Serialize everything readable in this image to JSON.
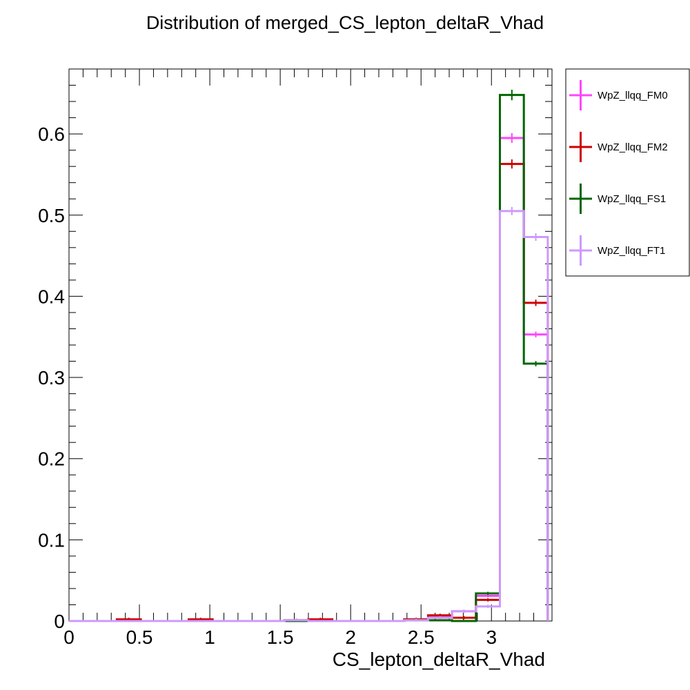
{
  "chart_data": {
    "type": "histogram",
    "title": "Distribution of merged_CS_lepton_deltaR_Vhad",
    "xlabel": "CS_lepton_deltaR_Vhad",
    "ylabel": "",
    "xlim": [
      0,
      3.43
    ],
    "ylim": [
      0,
      0.68
    ],
    "grid": false,
    "legend_position": "right, outside plot",
    "x_ticks": [
      "0",
      "0.5",
      "1",
      "1.5",
      "2",
      "2.5",
      "3"
    ],
    "y_ticks": [
      "0",
      "0.1",
      "0.2",
      "0.3",
      "0.4",
      "0.5",
      "0.6"
    ],
    "bin_edges": [
      0,
      0.17,
      0.34,
      0.51,
      0.68,
      0.85,
      1.02,
      1.19,
      1.36,
      1.53,
      1.7,
      1.87,
      2.04,
      2.21,
      2.38,
      2.55,
      2.72,
      2.89,
      3.06,
      3.23
    ],
    "series": [
      {
        "name": "WpZ_llqq_FM0",
        "color": "#ff44ff",
        "values": [
          0,
          0,
          0.001,
          0,
          0,
          0.001,
          0,
          0,
          0,
          0.001,
          0.001,
          0,
          0,
          0,
          0.001,
          0.005,
          0.012,
          0.031,
          0.595,
          0.353
        ]
      },
      {
        "name": "WpZ_llqq_FM2",
        "color": "#cc0000",
        "values": [
          0,
          0,
          0.002,
          0,
          0,
          0.002,
          0,
          0,
          0,
          0.001,
          0.002,
          0,
          0,
          0,
          0.002,
          0.007,
          0.004,
          0.026,
          0.563,
          0.392
        ]
      },
      {
        "name": "WpZ_llqq_FS1",
        "color": "#006600",
        "values": [
          0,
          0,
          0,
          0,
          0,
          0,
          0,
          0,
          0,
          0,
          0,
          0,
          0,
          0,
          0.001,
          0.001,
          0,
          0.034,
          0.648,
          0.317
        ]
      },
      {
        "name": "WpZ_llqq_FT1",
        "color": "#cc99ff",
        "values": [
          0,
          0,
          0,
          0,
          0,
          0,
          0,
          0,
          0,
          0.001,
          0,
          0,
          0,
          0,
          0.001,
          0.004,
          0.012,
          0.018,
          0.505,
          0.473
        ]
      }
    ]
  }
}
